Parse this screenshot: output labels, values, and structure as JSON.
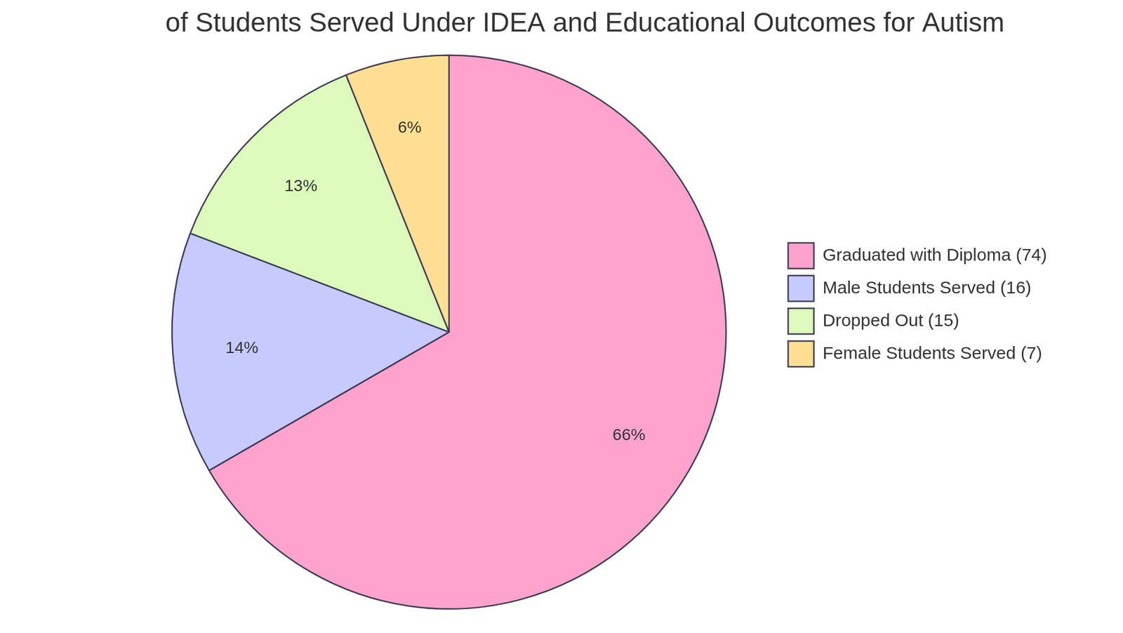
{
  "chart_data": {
    "type": "pie",
    "title": "of Students Served Under IDEA and Educational Outcomes for Autism",
    "categories": [
      "Graduated with Diploma (74)",
      "Male Students Served (16)",
      "Dropped Out (15)",
      "Female Students Served (7)"
    ],
    "values": [
      66,
      14,
      13,
      6
    ],
    "value_labels": [
      "66%",
      "14%",
      "13%",
      "6%"
    ],
    "colors": [
      "#ffa3cd",
      "#c7caff",
      "#dbfabb",
      "#ffdf91"
    ],
    "data_labels": true,
    "legend": "right"
  }
}
